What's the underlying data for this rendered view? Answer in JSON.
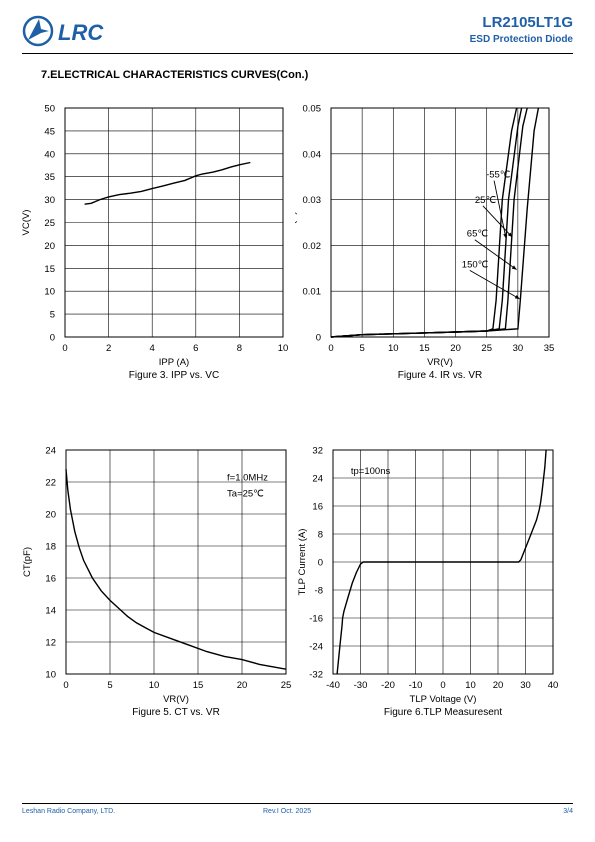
{
  "header": {
    "logo_text": "LRC",
    "part_number": "LR2105LT1G",
    "subtitle": "ESD Protection Diode"
  },
  "section_title": "7.ELECTRICAL CHARACTERISTICS CURVES(Con.)",
  "footer": {
    "company": "Leshan Radio Company, LTD.",
    "revision": "Rev.I   Oct.  2025",
    "page": "3/4"
  },
  "colors": {
    "brand": "#1f5fa8",
    "curve": "#000000",
    "grid": "#000000"
  },
  "chart_data": [
    {
      "type": "line",
      "caption": "Figure 3. IPP vs. VC",
      "xlabel": "IPP (A)",
      "ylabel": "VC(V)",
      "xlim": [
        0,
        10
      ],
      "ylim": [
        0,
        50
      ],
      "xticks": [
        "0",
        "2",
        "4",
        "6",
        "8",
        "10"
      ],
      "yticks": [
        "0",
        "5",
        "10",
        "15",
        "20",
        "25",
        "30",
        "35",
        "40",
        "45",
        "50"
      ],
      "grid": true,
      "series": [
        {
          "x": [
            0.9,
            1.2,
            1.6,
            2.0,
            2.5,
            3.0,
            3.5,
            4.0,
            4.5,
            5.0,
            5.5,
            6.0,
            6.3,
            6.8,
            7.2,
            7.6,
            8.0,
            8.5
          ],
          "y": [
            29.0,
            29.2,
            30.0,
            30.6,
            31.1,
            31.4,
            31.8,
            32.4,
            33.0,
            33.6,
            34.2,
            35.2,
            35.6,
            36.0,
            36.5,
            37.1,
            37.6,
            38.1
          ]
        }
      ]
    },
    {
      "type": "line",
      "caption": "Figure 4. IR vs. VR",
      "xlabel": "VR(V)",
      "ylabel": "IR(A)",
      "xlim": [
        0,
        35
      ],
      "ylim": [
        0,
        0.05
      ],
      "xticks": [
        "0",
        "5",
        "10",
        "15",
        "20",
        "25",
        "30",
        "35"
      ],
      "yticks": [
        "0",
        "0.01",
        "0.02",
        "0.03",
        "0.04",
        "0.05"
      ],
      "grid": true,
      "annotations": [
        "-55℃",
        "25℃",
        "65℃",
        "150℃"
      ],
      "annotation_points": [
        [
          24.9,
          0.0348
        ],
        [
          23.1,
          0.0293
        ],
        [
          21.8,
          0.0219
        ],
        [
          21.0,
          0.0152
        ]
      ],
      "arrow_targets": [
        [
          28.1,
          0.0215
        ],
        [
          29.1,
          0.0218
        ],
        [
          29.8,
          0.0147
        ],
        [
          30.3,
          0.0083
        ]
      ],
      "series": [
        {
          "name": "-55℃",
          "x": [
            0,
            5,
            10,
            15,
            20,
            25,
            26.0,
            26.5,
            27.5,
            29.0,
            29.8
          ],
          "y": [
            0,
            0.0005,
            0.0007,
            0.0009,
            0.0011,
            0.0013,
            0.0018,
            0.008,
            0.03,
            0.045,
            0.05
          ]
        },
        {
          "name": "25℃",
          "x": [
            0,
            5,
            10,
            15,
            20,
            25,
            27.0,
            27.5,
            28.5,
            30.0,
            30.6
          ],
          "y": [
            0,
            0.0005,
            0.0007,
            0.0009,
            0.0011,
            0.0013,
            0.0018,
            0.008,
            0.03,
            0.046,
            0.05
          ]
        },
        {
          "name": "65℃",
          "x": [
            0,
            5,
            10,
            15,
            20,
            25,
            28.0,
            28.4,
            29.4,
            30.8,
            31.5
          ],
          "y": [
            0,
            0.0005,
            0.0007,
            0.0009,
            0.0011,
            0.0013,
            0.0018,
            0.008,
            0.03,
            0.046,
            0.05
          ]
        },
        {
          "name": "150℃",
          "x": [
            0,
            5,
            10,
            15,
            20,
            25,
            30.0,
            30.4,
            31.5,
            32.6,
            33.3
          ],
          "y": [
            0,
            0.0005,
            0.0007,
            0.0009,
            0.0011,
            0.0013,
            0.0018,
            0.008,
            0.028,
            0.045,
            0.05
          ]
        }
      ]
    },
    {
      "type": "line",
      "caption": "Figure 5. CT vs. VR",
      "xlabel": "VR(V)",
      "ylabel": "CT(pF)",
      "xlim": [
        0,
        25
      ],
      "ylim": [
        10,
        24
      ],
      "xticks": [
        "0",
        "5",
        "10",
        "15",
        "20",
        "25"
      ],
      "yticks": [
        "10",
        "12",
        "14",
        "16",
        "18",
        "20",
        "22",
        "24"
      ],
      "grid": true,
      "annotations": [
        "f=1.0MHz",
        "Ta=25℃"
      ],
      "annotation_points": [
        [
          18.3,
          22.1
        ],
        [
          18.3,
          21.1
        ]
      ],
      "series": [
        {
          "x": [
            0,
            0.2,
            0.5,
            1,
            1.5,
            2,
            3,
            4,
            5,
            6,
            7,
            8,
            9,
            10,
            12,
            14,
            16,
            18,
            20,
            22,
            25
          ],
          "y": [
            22.8,
            21.5,
            20.3,
            18.9,
            17.9,
            17.1,
            16.0,
            15.2,
            14.6,
            14.1,
            13.6,
            13.2,
            12.9,
            12.6,
            12.2,
            11.8,
            11.4,
            11.1,
            10.9,
            10.6,
            10.3
          ]
        }
      ]
    },
    {
      "type": "line",
      "caption": "Figure 6.TLP Measuresent",
      "xlabel": "TLP Voltage (V)",
      "ylabel": "TLP Current (A)",
      "xlim": [
        -40,
        40
      ],
      "ylim": [
        -32,
        32
      ],
      "xticks": [
        "-40",
        "-30",
        "-20",
        "-10",
        "0",
        "10",
        "20",
        "30",
        "40"
      ],
      "yticks": [
        "-32",
        "-24",
        "-16",
        "-8",
        "0",
        "8",
        "16",
        "24",
        "32"
      ],
      "grid": true,
      "annotations": [
        "tp=100ns"
      ],
      "annotation_points": [
        [
          -33.5,
          25.2
        ]
      ],
      "series": [
        {
          "x": [
            -38.5,
            -37.5,
            -36.7,
            -36.5,
            -36,
            -34.5,
            -33,
            -31.5,
            -30,
            -29,
            -28.5,
            -10,
            0,
            10,
            20,
            27.5,
            28.3,
            29.5,
            31,
            32.5,
            34,
            35,
            35.5,
            36,
            37,
            37.5
          ],
          "y": [
            -32,
            -24,
            -18,
            -16,
            -14,
            -10,
            -6,
            -3,
            -0.6,
            0,
            0,
            0,
            0,
            0,
            0,
            0,
            0.6,
            3,
            6,
            9,
            12,
            15,
            17,
            20,
            27,
            32
          ]
        }
      ]
    }
  ]
}
